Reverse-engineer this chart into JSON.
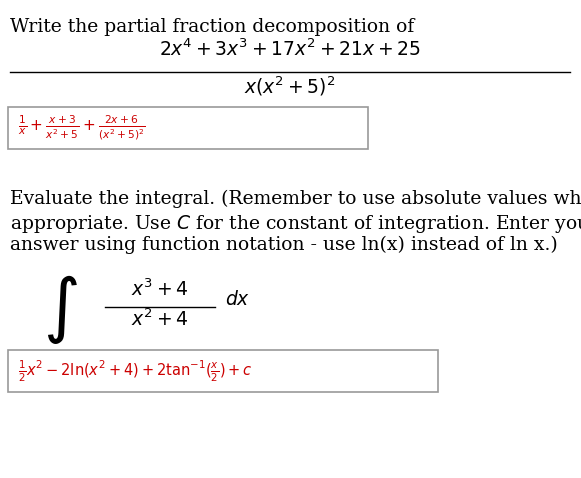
{
  "bg_color": "#ffffff",
  "text_color": "#000000",
  "answer_color": "#cc0000",
  "part_a_header": "Write the partial fraction decomposition of",
  "part_a_numerator": "$2x^4 + 3x^3 + 17x^2 + 21x + 25$",
  "part_a_denominator": "$x(x^2 + 5)^2$",
  "part_a_answer_red": "$\\frac{1}{x} + \\frac{x+3}{x^2+5} + \\frac{2x+6}{(x^2+5)^2}$",
  "part_b_header_line1": "Evaluate the integral. (Remember to use absolute values where",
  "part_b_header_line2": "appropriate. Use $C$ for the constant of integration. Enter your",
  "part_b_header_line3": "answer using function notation - use ln(x) instead of ln x.)",
  "part_b_int_num": "$x^3 + 4$",
  "part_b_int_den": "$x^2 + 4$",
  "part_b_int_dx": "$dx$",
  "part_b_answer_red": "$\\frac{1}{2}x^2 - 2\\ln(x^2+4) + 2\\tan^{-1}\\!(\\frac{x}{2}) + c$"
}
